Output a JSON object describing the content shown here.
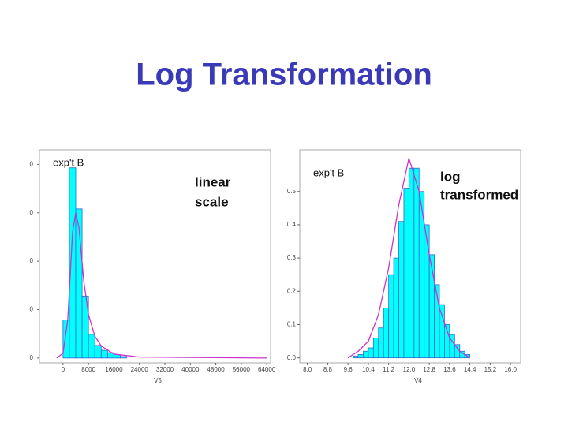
{
  "title": "Log Transformation",
  "chart_data": [
    {
      "type": "histogram",
      "xlabel": "V5",
      "annotations": [
        "exp't B",
        "linear",
        "scale"
      ],
      "color": "#00ffff",
      "edgecolor": "#3366cc",
      "bins": [
        0,
        2000,
        4000,
        6000,
        8000,
        10000,
        12000,
        14000,
        16000,
        18000,
        20000
      ],
      "values": [
        0.79,
        3.93,
        3.08,
        1.28,
        0.49,
        0.26,
        0.16,
        0.11,
        0.07,
        0.03
      ],
      "curve": {
        "color": "#cc33cc",
        "x": [
          -2000,
          0,
          1500,
          3000,
          4000,
          5000,
          6500,
          8000,
          10000,
          12000,
          16000,
          24000,
          64000
        ],
        "values": [
          0,
          0.1,
          0.8,
          2.6,
          3.0,
          2.7,
          1.6,
          0.9,
          0.45,
          0.25,
          0.08,
          0.02,
          0
        ]
      },
      "xlim": [
        -7400,
        65200
      ],
      "ylim": [
        -0.1,
        4.3
      ],
      "xticks": [
        0,
        8000,
        16000,
        24000,
        32000,
        40000,
        48000,
        56000,
        64000
      ],
      "yticks": [
        0,
        {
          "value": 1,
          "label": "0"
        },
        {
          "value": 2,
          "label": "0"
        },
        {
          "value": 3,
          "label": "0"
        },
        {
          "value": 4,
          "label": "0"
        }
      ]
    },
    {
      "type": "histogram",
      "xlabel": "V4",
      "annotations": [
        "exp't B",
        "log",
        "transformed"
      ],
      "color": "#00ffff",
      "edgecolor": "#3366cc",
      "bins": [
        9.8,
        10.0,
        10.2,
        10.4,
        10.6,
        10.8,
        11.0,
        11.2,
        11.4,
        11.6,
        11.8,
        12.0,
        12.2,
        12.4,
        12.6,
        12.8,
        13.0,
        13.2,
        13.4,
        13.6,
        13.8,
        14.0,
        14.2,
        14.4
      ],
      "values": [
        0.005,
        0.01,
        0.02,
        0.03,
        0.06,
        0.09,
        0.15,
        0.25,
        0.3,
        0.41,
        0.51,
        0.57,
        0.57,
        0.5,
        0.4,
        0.31,
        0.22,
        0.16,
        0.1,
        0.07,
        0.04,
        0.02,
        0.01
      ],
      "curve": {
        "color": "#cc33cc",
        "x": [
          9.6,
          10.0,
          10.4,
          10.8,
          11.2,
          11.6,
          12.0,
          12.4,
          12.8,
          13.2,
          13.6,
          14.0,
          14.4
        ],
        "values": [
          0,
          0.02,
          0.05,
          0.13,
          0.27,
          0.46,
          0.6,
          0.5,
          0.31,
          0.15,
          0.06,
          0.02,
          0
        ]
      },
      "xlim": [
        7.7,
        16.4
      ],
      "ylim": [
        -0.015,
        0.625
      ],
      "xticks": [
        {
          "value": 8.0,
          "label": "8.0"
        },
        8.8,
        9.6,
        10.4,
        11.2,
        {
          "value": 12.0,
          "label": "12.0"
        },
        12.8,
        13.6,
        14.4,
        15.2,
        {
          "value": 16.0,
          "label": "16.0"
        }
      ],
      "yticks": [
        {
          "value": 0,
          "label": "0.0"
        },
        0.1,
        0.2,
        0.3,
        0.4,
        0.5
      ]
    }
  ]
}
